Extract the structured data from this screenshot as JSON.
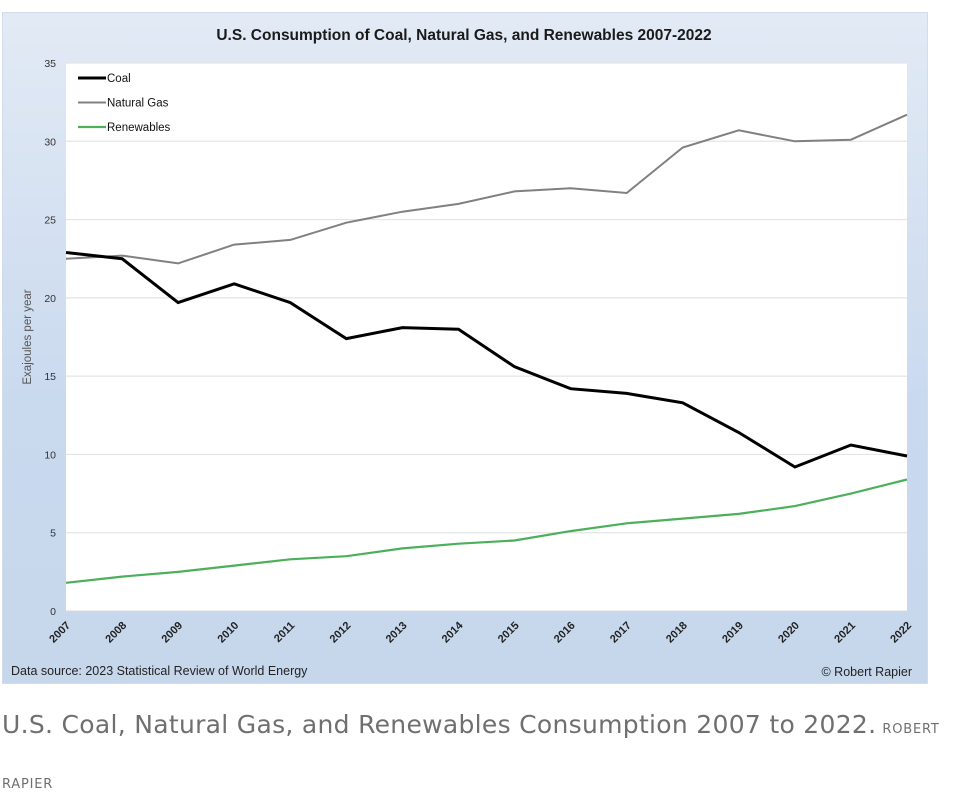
{
  "chart_data": {
    "type": "line",
    "title": "U.S. Consumption of Coal, Natural Gas, and Renewables 2007-2022",
    "xlabel": "",
    "ylabel": "Exajoules per year",
    "x": [
      "2007",
      "2008",
      "2009",
      "2010",
      "2011",
      "2012",
      "2013",
      "2014",
      "2015",
      "2016",
      "2017",
      "2018",
      "2019",
      "2020",
      "2021",
      "2022"
    ],
    "ylim": [
      0,
      35
    ],
    "yticks": [
      0,
      5,
      10,
      15,
      20,
      25,
      30,
      35
    ],
    "grid": true,
    "legend_position": "top-left",
    "series": [
      {
        "name": "Coal",
        "color": "#000000",
        "values": [
          22.9,
          22.5,
          19.7,
          20.9,
          19.7,
          17.4,
          18.1,
          18.0,
          15.6,
          14.2,
          13.9,
          13.3,
          11.4,
          9.2,
          10.6,
          9.9
        ]
      },
      {
        "name": "Natural Gas",
        "color": "#808080",
        "values": [
          22.5,
          22.7,
          22.2,
          23.4,
          23.7,
          24.8,
          25.5,
          26.0,
          26.8,
          27.0,
          26.7,
          29.6,
          30.7,
          30.0,
          30.1,
          31.7
        ]
      },
      {
        "name": "Renewables",
        "color": "#4caf5c",
        "values": [
          1.8,
          2.2,
          2.5,
          2.9,
          3.3,
          3.5,
          4.0,
          4.3,
          4.5,
          5.1,
          5.6,
          5.9,
          6.2,
          6.7,
          7.5,
          8.4
        ]
      }
    ],
    "annotations": {
      "source": "Data source: 2023 Statistical Review of World Energy",
      "copyright": "© Robert Rapier"
    }
  },
  "caption": {
    "text": "U.S. Coal, Natural Gas, and Renewables Consumption 2007 to 2022.",
    "credit": "Robert Rapier"
  }
}
